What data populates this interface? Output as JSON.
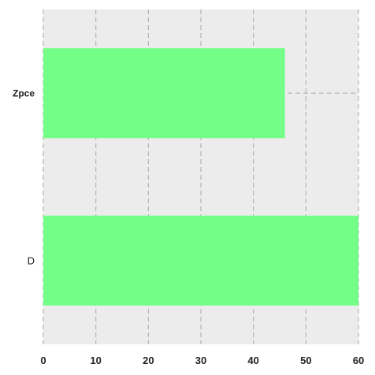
{
  "chart_data": {
    "type": "bar",
    "orientation": "horizontal",
    "categories": [
      "Zpce",
      "D"
    ],
    "values": [
      46,
      60
    ],
    "xlim": [
      0,
      60
    ],
    "xticks": [
      0,
      10,
      20,
      30,
      40,
      50,
      60
    ],
    "xtick_labels": [
      "0",
      "10",
      "20",
      "30",
      "40",
      "50",
      "60"
    ],
    "title": "",
    "xlabel": "",
    "ylabel": "",
    "grid": true,
    "grid_style": "dashed",
    "bar_color": "#73ff87",
    "background_color": "#ececec",
    "grid_color": "#b4b4b4",
    "category_label_bold": [
      true,
      false
    ]
  }
}
